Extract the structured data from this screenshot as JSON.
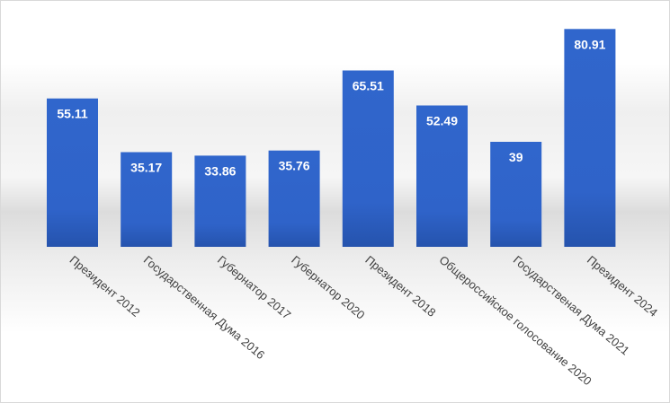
{
  "chart_data": {
    "type": "bar",
    "title": "",
    "xlabel": "",
    "ylabel": "",
    "categories": [
      "Президент 2012",
      "Государственная Дума 2016",
      "Губернатор 2017",
      "Губернатор 2020",
      "Президент 2018",
      "Общероссийское голосование 2020",
      "Государственая Дума 2021",
      "Президент 2024"
    ],
    "values": [
      55.11,
      35.17,
      33.86,
      35.76,
      65.51,
      52.49,
      39,
      80.91
    ],
    "value_labels": [
      "55.11",
      "35.17",
      "33.86",
      "35.76",
      "65.51",
      "52.49",
      "39",
      "80.91"
    ],
    "ylim": [
      0,
      85
    ],
    "grid": false,
    "legend": "none",
    "colors": {
      "bar": "#2f63c9",
      "bar_bottom": "#2553ad",
      "label": "#ffffff",
      "tick": "#404040"
    }
  }
}
